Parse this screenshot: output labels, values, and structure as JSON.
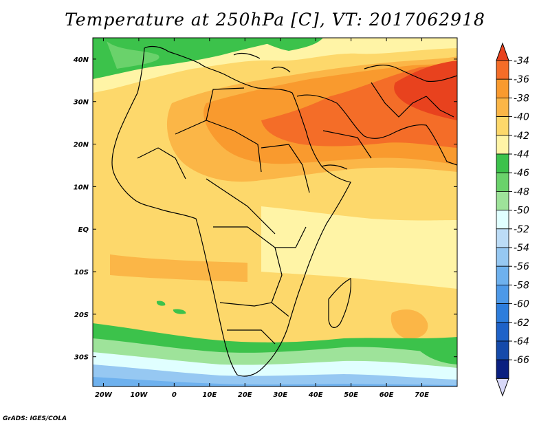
{
  "title": "Temperature at 250hPa [C], VT: 2017062918",
  "credit": "GrADS: IGES/COLA",
  "map": {
    "lon_range": [
      -23,
      80
    ],
    "lat_range": [
      -37,
      45
    ],
    "lon_labels": [
      {
        "lon": -20,
        "text": "20W"
      },
      {
        "lon": -10,
        "text": "10W"
      },
      {
        "lon": 0,
        "text": "0"
      },
      {
        "lon": 10,
        "text": "10E"
      },
      {
        "lon": 20,
        "text": "20E"
      },
      {
        "lon": 30,
        "text": "30E"
      },
      {
        "lon": 40,
        "text": "40E"
      },
      {
        "lon": 50,
        "text": "50E"
      },
      {
        "lon": 60,
        "text": "60E"
      },
      {
        "lon": 70,
        "text": "70E"
      }
    ],
    "lat_labels": [
      {
        "lat": 40,
        "text": "40N"
      },
      {
        "lat": 30,
        "text": "30N"
      },
      {
        "lat": 20,
        "text": "20N"
      },
      {
        "lat": 10,
        "text": "10N"
      },
      {
        "lat": 0,
        "text": "EQ"
      },
      {
        "lat": -10,
        "text": "10S"
      },
      {
        "lat": -20,
        "text": "20S"
      },
      {
        "lat": -30,
        "text": "30S"
      }
    ]
  },
  "colorbar": {
    "labels": [
      "-34",
      "-36",
      "-38",
      "-40",
      "-42",
      "-44",
      "-46",
      "-48",
      "-50",
      "-52",
      "-54",
      "-56",
      "-58",
      "-60",
      "-62",
      "-64",
      "-66"
    ],
    "colors": [
      "#f46d28",
      "#f99a2e",
      "#fbb647",
      "#fdd86b",
      "#fff4a6",
      "#3cc24b",
      "#6ad26b",
      "#9ee39a",
      "#e0ffff",
      "#bcdcf6",
      "#96c8f2",
      "#6eb1ee",
      "#4d99e8",
      "#2d7ddc",
      "#1e62c8",
      "#154aaa",
      "#0a1f80"
    ],
    "top_arrow_color": "#e8421e",
    "bottom_arrow_color": "#d8d8f8"
  }
}
